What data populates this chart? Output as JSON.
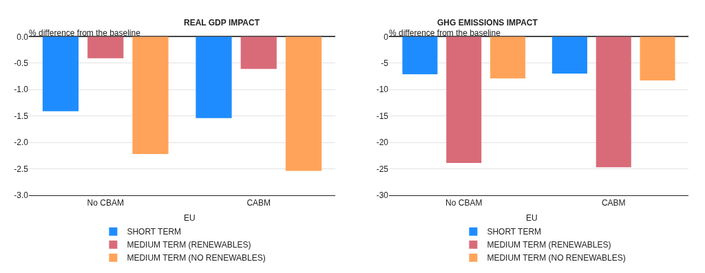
{
  "chart_data": [
    {
      "type": "bar",
      "title": "REAL GDP IMPACT",
      "ylabel": "% difference from the baseline",
      "xlabel": "EU",
      "categories": [
        "No CBAM",
        "CABM"
      ],
      "series": [
        {
          "name": "SHORT TERM",
          "color": "#1e8cff",
          "values": [
            -1.41,
            -1.54
          ]
        },
        {
          "name": "MEDIUM TERM (RENEWABLES)",
          "color": "#d96b78",
          "values": [
            -0.41,
            -0.61
          ]
        },
        {
          "name": "MEDIUM TERM (NO RENEWABLES)",
          "color": "#ffa35a",
          "values": [
            -2.22,
            -2.54
          ]
        }
      ],
      "ylim": [
        -3.0,
        0.0
      ],
      "yticks": [
        {
          "value": -3,
          "label": "-3.0"
        },
        {
          "value": -2.5,
          "label": "-2.5"
        },
        {
          "value": -2,
          "label": "-2.0"
        },
        {
          "value": -1.5,
          "label": "-1.5"
        },
        {
          "value": -1,
          "label": "-1.0"
        },
        {
          "value": -0.5,
          "label": "-0.5"
        },
        {
          "value": 0,
          "label": "0.0"
        }
      ],
      "grid": "y",
      "legend": "bottom"
    },
    {
      "type": "bar",
      "title": "GHG EMISSIONS IMPACT",
      "ylabel": "% difference from the baseline",
      "xlabel": "EU",
      "categories": [
        "No CBAM",
        "CABM"
      ],
      "series": [
        {
          "name": "SHORT TERM",
          "color": "#1e8cff",
          "values": [
            -7.1,
            -7.0
          ]
        },
        {
          "name": "MEDIUM TERM (RENEWABLES)",
          "color": "#d96b78",
          "values": [
            -23.9,
            -24.7
          ]
        },
        {
          "name": "MEDIUM TERM (NO RENEWABLES)",
          "color": "#ffa35a",
          "values": [
            -7.9,
            -8.3
          ]
        }
      ],
      "ylim": [
        -30,
        0
      ],
      "yticks": [
        -30,
        -25,
        -20,
        -15,
        -10,
        -5,
        0
      ],
      "grid": "y",
      "legend": "bottom"
    }
  ]
}
